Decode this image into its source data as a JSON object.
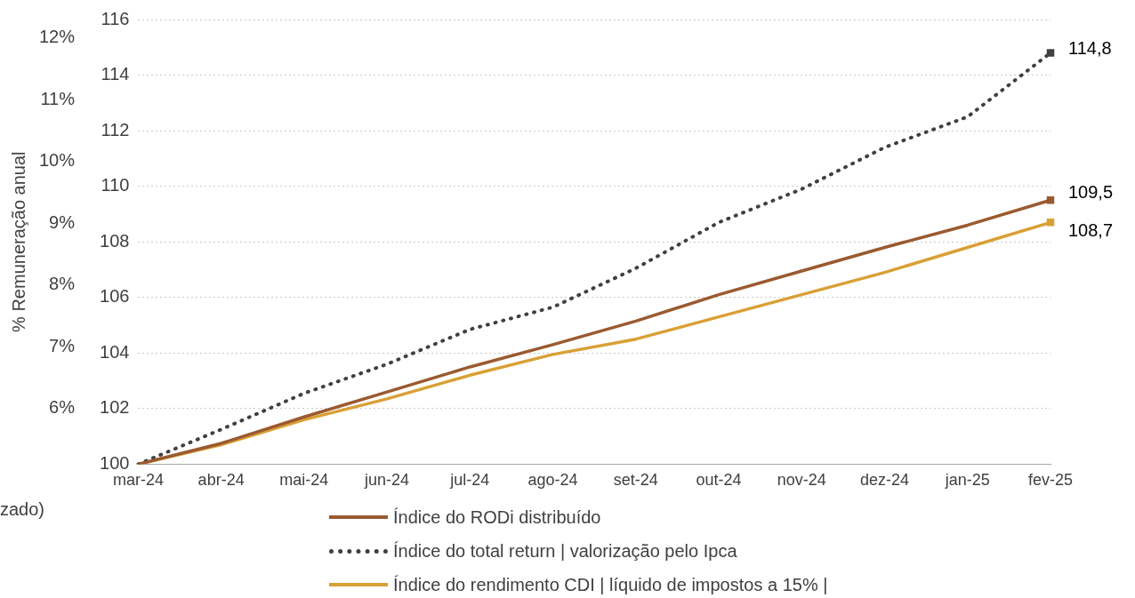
{
  "chart_data": {
    "type": "line",
    "categories": [
      "mar-24",
      "abr-24",
      "mai-24",
      "jun-24",
      "jul-24",
      "ago-24",
      "set-24",
      "out-24",
      "nov-24",
      "dez-24",
      "jan-25",
      "fev-25"
    ],
    "series": [
      {
        "name": "Índice do RODi distribuído",
        "color": "#9a5a30",
        "line_style": "solid",
        "values": [
          100,
          100.75,
          101.7,
          102.6,
          103.5,
          104.3,
          105.15,
          106.1,
          106.95,
          107.8,
          108.6,
          109.5
        ],
        "value_labels": [
          null,
          null,
          null,
          null,
          null,
          null,
          null,
          null,
          null,
          null,
          null,
          "109,5"
        ]
      },
      {
        "name": "Índice do total return | valorização pelo Ipca",
        "color": "#404040",
        "line_style": "dotted",
        "values": [
          100,
          101.25,
          102.55,
          103.6,
          104.85,
          105.65,
          107.05,
          108.7,
          109.9,
          111.4,
          112.5,
          114.8
        ],
        "value_labels": [
          null,
          null,
          null,
          null,
          null,
          null,
          null,
          null,
          null,
          null,
          null,
          "114,8"
        ]
      },
      {
        "name": "Índice do rendimento CDI | líquido de impostos a 15% |",
        "color": "#d9a035",
        "line_style": "solid",
        "values": [
          100,
          100.7,
          101.6,
          102.35,
          103.2,
          103.95,
          104.5,
          105.3,
          106.1,
          106.9,
          107.8,
          108.7
        ],
        "value_labels": [
          null,
          null,
          null,
          null,
          null,
          null,
          null,
          null,
          null,
          null,
          null,
          "108,7"
        ]
      }
    ],
    "ylim": [
      100,
      116
    ],
    "yticks": [
      100,
      102,
      104,
      106,
      108,
      110,
      112,
      114,
      116
    ],
    "y2label": "% Remuneração anual",
    "y2lim": [
      5.1,
      12.3
    ],
    "y2ticks": [
      {
        "value": 6,
        "label": "6%"
      },
      {
        "value": 7,
        "label": "7%"
      },
      {
        "value": 8,
        "label": "8%"
      },
      {
        "value": 9,
        "label": "9%"
      },
      {
        "value": 10,
        "label": "10%"
      },
      {
        "value": 11,
        "label": "11%"
      },
      {
        "value": 12,
        "label": "12%"
      }
    ],
    "grid": "y",
    "legend": "bottom",
    "annotations": [
      "zado)"
    ]
  }
}
